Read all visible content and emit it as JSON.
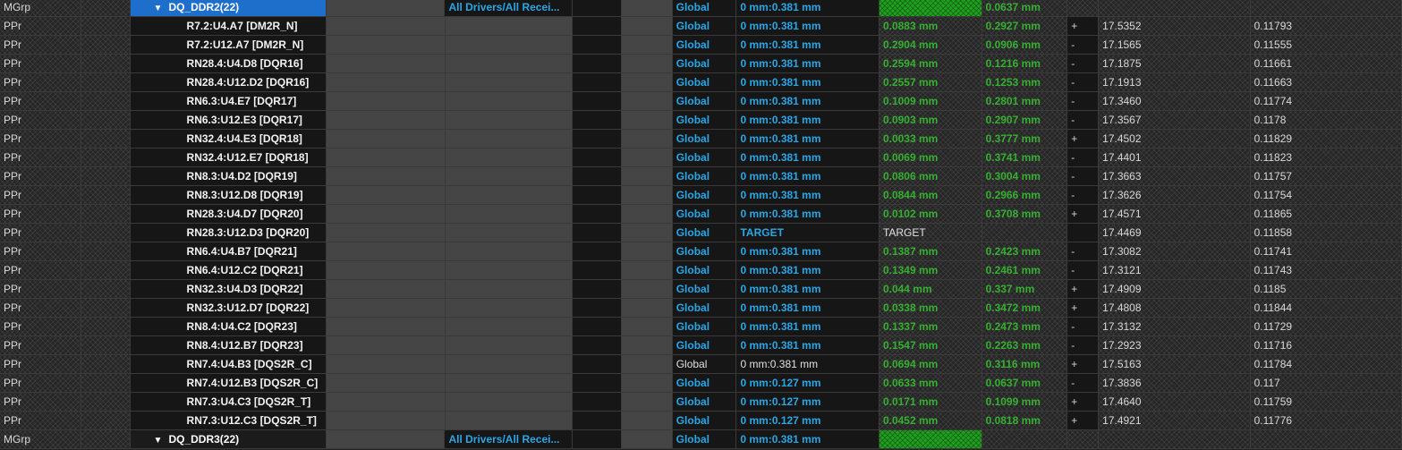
{
  "groups": [
    {
      "type": "MGrp",
      "name": "DQ_DDR2(22)",
      "expander": "▼",
      "drivers": "All Drivers/All Recei...",
      "scope": "Global",
      "range": "0 mm:0.381 mm",
      "actual": "",
      "margin": "0.0637 mm",
      "sign": "",
      "length": "",
      "delay": ""
    },
    {
      "type": "MGrp",
      "name": "DQ_DDR3(22)",
      "expander": "▼",
      "drivers": "All Drivers/All Recei...",
      "scope": "Global",
      "range": "0 mm:0.381 mm",
      "actual": "",
      "margin": "",
      "sign": "",
      "length": "",
      "delay": ""
    }
  ],
  "rows": [
    {
      "type": "PPr",
      "name": "R7.2:U4.A7 [DM2R_N]",
      "scope": "Global",
      "range": "0 mm:0.381 mm",
      "actual": "0.0883 mm",
      "margin": "0.2927 mm",
      "sign": "+",
      "length": "17.5352",
      "delay": "0.11793"
    },
    {
      "type": "PPr",
      "name": "R7.2:U12.A7 [DM2R_N]",
      "scope": "Global",
      "range": "0 mm:0.381 mm",
      "actual": "0.2904 mm",
      "margin": "0.0906 mm",
      "sign": "-",
      "length": "17.1565",
      "delay": "0.11555"
    },
    {
      "type": "PPr",
      "name": "RN28.4:U4.D8 [DQR16]",
      "scope": "Global",
      "range": "0 mm:0.381 mm",
      "actual": "0.2594 mm",
      "margin": "0.1216 mm",
      "sign": "-",
      "length": "17.1875",
      "delay": "0.11661"
    },
    {
      "type": "PPr",
      "name": "RN28.4:U12.D2 [DQR16]",
      "scope": "Global",
      "range": "0 mm:0.381 mm",
      "actual": "0.2557 mm",
      "margin": "0.1253 mm",
      "sign": "-",
      "length": "17.1913",
      "delay": "0.11663"
    },
    {
      "type": "PPr",
      "name": "RN6.3:U4.E7 [DQR17]",
      "scope": "Global",
      "range": "0 mm:0.381 mm",
      "actual": "0.1009 mm",
      "margin": "0.2801 mm",
      "sign": "-",
      "length": "17.3460",
      "delay": "0.11774"
    },
    {
      "type": "PPr",
      "name": "RN6.3:U12.E3 [DQR17]",
      "scope": "Global",
      "range": "0 mm:0.381 mm",
      "actual": "0.0903 mm",
      "margin": "0.2907 mm",
      "sign": "-",
      "length": "17.3567",
      "delay": "0.1178"
    },
    {
      "type": "PPr",
      "name": "RN32.4:U4.E3 [DQR18]",
      "scope": "Global",
      "range": "0 mm:0.381 mm",
      "actual": "0.0033 mm",
      "margin": "0.3777 mm",
      "sign": "+",
      "length": "17.4502",
      "delay": "0.11829"
    },
    {
      "type": "PPr",
      "name": "RN32.4:U12.E7 [DQR18]",
      "scope": "Global",
      "range": "0 mm:0.381 mm",
      "actual": "0.0069 mm",
      "margin": "0.3741 mm",
      "sign": "-",
      "length": "17.4401",
      "delay": "0.11823"
    },
    {
      "type": "PPr",
      "name": "RN8.3:U4.D2 [DQR19]",
      "scope": "Global",
      "range": "0 mm:0.381 mm",
      "actual": "0.0806 mm",
      "margin": "0.3004 mm",
      "sign": "-",
      "length": "17.3663",
      "delay": "0.11757"
    },
    {
      "type": "PPr",
      "name": "RN8.3:U12.D8 [DQR19]",
      "scope": "Global",
      "range": "0 mm:0.381 mm",
      "actual": "0.0844 mm",
      "margin": "0.2966 mm",
      "sign": "-",
      "length": "17.3626",
      "delay": "0.11754"
    },
    {
      "type": "PPr",
      "name": "RN28.3:U4.D7 [DQR20]",
      "scope": "Global",
      "range": "0 mm:0.381 mm",
      "actual": "0.0102 mm",
      "margin": "0.3708 mm",
      "sign": "+",
      "length": "17.4571",
      "delay": "0.11865"
    },
    {
      "type": "PPr",
      "name": "RN28.3:U12.D3 [DQR20]",
      "scope": "Global",
      "range": "TARGET",
      "actual": "TARGET",
      "margin": "",
      "sign": "",
      "length": "17.4469",
      "delay": "0.11858",
      "style": "target"
    },
    {
      "type": "PPr",
      "name": "RN6.4:U4.B7 [DQR21]",
      "scope": "Global",
      "range": "0 mm:0.381 mm",
      "actual": "0.1387 mm",
      "margin": "0.2423 mm",
      "sign": "-",
      "length": "17.3082",
      "delay": "0.11741"
    },
    {
      "type": "PPr",
      "name": "RN6.4:U12.C2 [DQR21]",
      "scope": "Global",
      "range": "0 mm:0.381 mm",
      "actual": "0.1349 mm",
      "margin": "0.2461 mm",
      "sign": "-",
      "length": "17.3121",
      "delay": "0.11743"
    },
    {
      "type": "PPr",
      "name": "RN32.3:U4.D3 [DQR22]",
      "scope": "Global",
      "range": "0 mm:0.381 mm",
      "actual": "0.044 mm",
      "margin": "0.337 mm",
      "sign": "+",
      "length": "17.4909",
      "delay": "0.1185"
    },
    {
      "type": "PPr",
      "name": "RN32.3:U12.D7 [DQR22]",
      "scope": "Global",
      "range": "0 mm:0.381 mm",
      "actual": "0.0338 mm",
      "margin": "0.3472 mm",
      "sign": "+",
      "length": "17.4808",
      "delay": "0.11844"
    },
    {
      "type": "PPr",
      "name": "RN8.4:U4.C2 [DQR23]",
      "scope": "Global",
      "range": "0 mm:0.381 mm",
      "actual": "0.1337 mm",
      "margin": "0.2473 mm",
      "sign": "-",
      "length": "17.3132",
      "delay": "0.11729"
    },
    {
      "type": "PPr",
      "name": "RN8.4:U12.B7 [DQR23]",
      "scope": "Global",
      "range": "0 mm:0.381 mm",
      "actual": "0.1547 mm",
      "margin": "0.2263 mm",
      "sign": "-",
      "length": "17.2923",
      "delay": "0.11716"
    },
    {
      "type": "PPr",
      "name": "RN7.4:U4.B3 [DQS2R_C]",
      "scope": "Global",
      "range": "0 mm:0.381 mm",
      "actual": "0.0694 mm",
      "margin": "0.3116 mm",
      "sign": "+",
      "length": "17.5163",
      "delay": "0.11784",
      "style": "plain"
    },
    {
      "type": "PPr",
      "name": "RN7.4:U12.B3 [DQS2R_C]",
      "scope": "Global",
      "range": "0 mm:0.127 mm",
      "actual": "0.0633 mm",
      "margin": "0.0637 mm",
      "sign": "-",
      "length": "17.3836",
      "delay": "0.117"
    },
    {
      "type": "PPr",
      "name": "RN7.3:U4.C3 [DQS2R_T]",
      "scope": "Global",
      "range": "0 mm:0.127 mm",
      "actual": "0.0171 mm",
      "margin": "0.1099 mm",
      "sign": "+",
      "length": "17.4640",
      "delay": "0.11759"
    },
    {
      "type": "PPr",
      "name": "RN7.3:U12.C3 [DQS2R_T]",
      "scope": "Global",
      "range": "0 mm:0.127 mm",
      "actual": "0.0452 mm",
      "margin": "0.0818 mm",
      "sign": "+",
      "length": "17.4921",
      "delay": "0.11776"
    }
  ],
  "colors": {
    "accent_blue": "#29a6e6",
    "pass_green": "#35b030",
    "selection_blue": "#1e6fcc"
  }
}
